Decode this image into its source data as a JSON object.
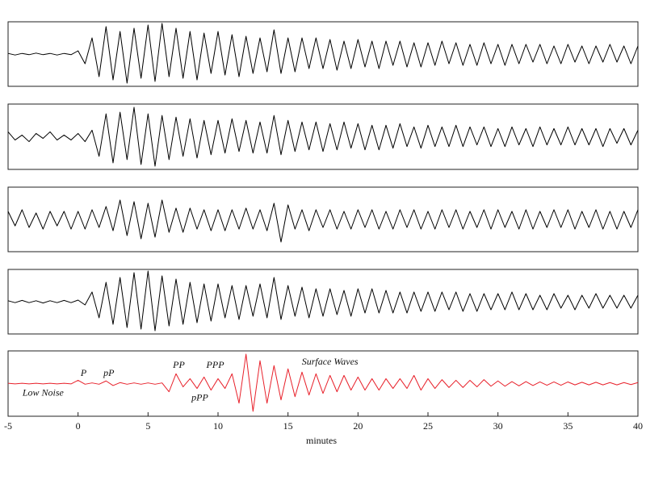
{
  "chart_data": {
    "type": "line",
    "xlabel": "minutes",
    "x": [
      -5,
      -4.5,
      -4,
      -3.5,
      -3,
      -2.5,
      -2,
      -1.5,
      -1,
      -0.5,
      0,
      0.5,
      1,
      1.5,
      2,
      2.5,
      3,
      3.5,
      4,
      4.5,
      5,
      5.5,
      6,
      6.5,
      7,
      7.5,
      8,
      8.5,
      9,
      9.5,
      10,
      10.5,
      11,
      11.5,
      12,
      12.5,
      13,
      13.5,
      14,
      14.5,
      15,
      15.5,
      16,
      16.5,
      17,
      17.5,
      18,
      18.5,
      19,
      19.5,
      20,
      20.5,
      21,
      21.5,
      22,
      22.5,
      23,
      23.5,
      24,
      24.5,
      25,
      25.5,
      26,
      26.5,
      27,
      27.5,
      28,
      28.5,
      29,
      29.5,
      30,
      30.5,
      31,
      31.5,
      32,
      32.5,
      33,
      33.5,
      34,
      34.5,
      35,
      35.5,
      36,
      36.5,
      37,
      37.5,
      38,
      38.5,
      39,
      39.5,
      40
    ],
    "xlim": [
      -5,
      40
    ],
    "xticks": [
      -5,
      0,
      5,
      10,
      15,
      20,
      25,
      30,
      35,
      40
    ],
    "ylim": [
      -1,
      1
    ],
    "series": [
      {
        "color": "#000000",
        "values": [
          0.02,
          -0.03,
          0.02,
          -0.02,
          0.03,
          -0.02,
          0.02,
          -0.03,
          0.02,
          -0.02,
          0.1,
          -0.3,
          0.5,
          -0.7,
          0.85,
          -0.8,
          0.7,
          -0.9,
          0.8,
          -0.75,
          0.9,
          -0.85,
          0.95,
          -0.7,
          0.8,
          -0.75,
          0.7,
          -0.8,
          0.65,
          -0.6,
          0.7,
          -0.65,
          0.6,
          -0.7,
          0.55,
          -0.6,
          0.5,
          -0.55,
          0.75,
          -0.6,
          0.5,
          -0.55,
          0.5,
          -0.45,
          0.5,
          -0.45,
          0.45,
          -0.5,
          0.4,
          -0.45,
          0.45,
          -0.4,
          0.4,
          -0.45,
          0.4,
          -0.35,
          0.4,
          -0.4,
          0.35,
          -0.4,
          0.35,
          -0.35,
          0.4,
          -0.3,
          0.35,
          -0.35,
          0.3,
          -0.35,
          0.35,
          -0.3,
          0.3,
          -0.35,
          0.3,
          -0.3,
          0.3,
          -0.25,
          0.3,
          -0.3,
          0.25,
          -0.3,
          0.3,
          -0.25,
          0.25,
          -0.3,
          0.25,
          -0.25,
          0.3,
          -0.25,
          0.25,
          -0.3,
          0.25
        ]
      },
      {
        "color": "#000000",
        "values": [
          0.15,
          -0.1,
          0.05,
          -0.15,
          0.1,
          -0.05,
          0.15,
          -0.1,
          0.05,
          -0.1,
          0.1,
          -0.15,
          0.2,
          -0.6,
          0.7,
          -0.8,
          0.75,
          -0.7,
          0.9,
          -0.85,
          0.7,
          -0.9,
          0.65,
          -0.7,
          0.6,
          -0.6,
          0.55,
          -0.65,
          0.5,
          -0.55,
          0.5,
          -0.5,
          0.55,
          -0.45,
          0.5,
          -0.5,
          0.45,
          -0.5,
          0.65,
          -0.55,
          0.5,
          -0.45,
          0.45,
          -0.4,
          0.45,
          -0.45,
          0.4,
          -0.4,
          0.45,
          -0.35,
          0.4,
          -0.4,
          0.35,
          -0.4,
          0.35,
          -0.35,
          0.4,
          -0.3,
          0.3,
          -0.35,
          0.35,
          -0.3,
          0.3,
          -0.3,
          0.35,
          -0.3,
          0.3,
          -0.25,
          0.3,
          -0.3,
          0.25,
          -0.3,
          0.3,
          -0.25,
          0.25,
          -0.3,
          0.3,
          -0.25,
          0.25,
          -0.25,
          0.3,
          -0.25,
          0.25,
          -0.25,
          0.25,
          -0.3,
          0.25,
          -0.2,
          0.25,
          -0.25,
          0.2
        ]
      },
      {
        "color": "#000000",
        "values": [
          0.25,
          -0.2,
          0.3,
          -0.25,
          0.2,
          -0.3,
          0.25,
          -0.2,
          0.25,
          -0.3,
          0.25,
          -0.3,
          0.3,
          -0.25,
          0.4,
          -0.35,
          0.6,
          -0.5,
          0.55,
          -0.6,
          0.5,
          -0.55,
          0.6,
          -0.4,
          0.35,
          -0.4,
          0.35,
          -0.3,
          0.3,
          -0.35,
          0.3,
          -0.35,
          0.3,
          -0.3,
          0.35,
          -0.3,
          0.3,
          -0.35,
          0.5,
          -0.7,
          0.45,
          -0.3,
          0.3,
          -0.35,
          0.3,
          -0.25,
          0.3,
          -0.3,
          0.25,
          -0.3,
          0.3,
          -0.25,
          0.3,
          -0.3,
          0.25,
          -0.3,
          0.3,
          -0.25,
          0.3,
          -0.3,
          0.25,
          -0.3,
          0.3,
          -0.25,
          0.3,
          -0.3,
          0.25,
          -0.25,
          0.3,
          -0.3,
          0.3,
          -0.25,
          0.25,
          -0.3,
          0.3,
          -0.3,
          0.25,
          -0.25,
          0.3,
          -0.25,
          0.3,
          -0.3,
          0.25,
          -0.25,
          0.3,
          -0.3,
          0.25,
          -0.3,
          0.25,
          -0.25,
          0.3
        ]
      },
      {
        "color": "#000000",
        "values": [
          0.03,
          -0.03,
          0.04,
          -0.03,
          0.03,
          -0.04,
          0.03,
          -0.03,
          0.04,
          -0.03,
          0.05,
          -0.1,
          0.3,
          -0.5,
          0.6,
          -0.7,
          0.75,
          -0.8,
          0.9,
          -0.85,
          0.95,
          -0.9,
          0.8,
          -0.75,
          0.7,
          -0.7,
          0.6,
          -0.65,
          0.55,
          -0.6,
          0.55,
          -0.5,
          0.5,
          -0.55,
          0.5,
          -0.45,
          0.55,
          -0.5,
          0.75,
          -0.55,
          0.5,
          -0.45,
          0.45,
          -0.5,
          0.4,
          -0.45,
          0.4,
          -0.4,
          0.35,
          -0.45,
          0.4,
          -0.35,
          0.4,
          -0.35,
          0.35,
          -0.35,
          0.3,
          -0.35,
          0.3,
          -0.3,
          0.3,
          -0.3,
          0.3,
          -0.25,
          0.3,
          -0.3,
          0.25,
          -0.3,
          0.25,
          -0.25,
          0.25,
          -0.25,
          0.3,
          -0.25,
          0.25,
          -0.25,
          0.2,
          -0.25,
          0.25,
          -0.2,
          0.2,
          -0.25,
          0.2,
          -0.2,
          0.25,
          -0.2,
          0.2,
          -0.2,
          0.2,
          -0.2,
          0.2
        ]
      },
      {
        "color": "#e8202a",
        "values": [
          0.01,
          -0.01,
          0.01,
          -0.01,
          0.01,
          -0.01,
          0.01,
          -0.01,
          0.01,
          -0.01,
          0.1,
          -0.02,
          0.02,
          -0.02,
          0.08,
          -0.06,
          0.03,
          -0.02,
          0.02,
          -0.02,
          0.02,
          -0.02,
          0.02,
          -0.25,
          0.3,
          -0.1,
          0.15,
          -0.15,
          0.2,
          -0.2,
          0.15,
          -0.15,
          0.3,
          -0.6,
          0.9,
          -0.85,
          0.7,
          -0.6,
          0.55,
          -0.5,
          0.45,
          -0.4,
          0.35,
          -0.35,
          0.3,
          -0.3,
          0.25,
          -0.25,
          0.25,
          -0.2,
          0.2,
          -0.2,
          0.15,
          -0.2,
          0.15,
          -0.15,
          0.15,
          -0.15,
          0.25,
          -0.2,
          0.15,
          -0.15,
          0.12,
          -0.12,
          0.1,
          -0.12,
          0.1,
          -0.1,
          0.12,
          -0.08,
          0.08,
          -0.08,
          0.06,
          -0.07,
          0.06,
          -0.06,
          0.05,
          -0.05,
          0.05,
          -0.05,
          0.05,
          -0.04,
          0.04,
          -0.04,
          0.04,
          -0.04,
          0.03,
          -0.04,
          0.03,
          -0.03,
          0.03
        ]
      }
    ],
    "annotations": [
      {
        "text": "P",
        "x": 0.4,
        "y": 0.3,
        "series": 4
      },
      {
        "text": "pP",
        "x": 2.2,
        "y": 0.3,
        "series": 4
      },
      {
        "text": "PP",
        "x": 7.2,
        "y": 0.55,
        "series": 4
      },
      {
        "text": "PPP",
        "x": 9.8,
        "y": 0.55,
        "series": 4
      },
      {
        "text": "pPP",
        "x": 8.7,
        "y": -0.45,
        "series": 4
      },
      {
        "text": "Surface Waves",
        "x": 18,
        "y": 0.65,
        "series": 4
      },
      {
        "text": "Low Noise",
        "x": -2.5,
        "y": -0.3,
        "series": 4
      }
    ]
  }
}
